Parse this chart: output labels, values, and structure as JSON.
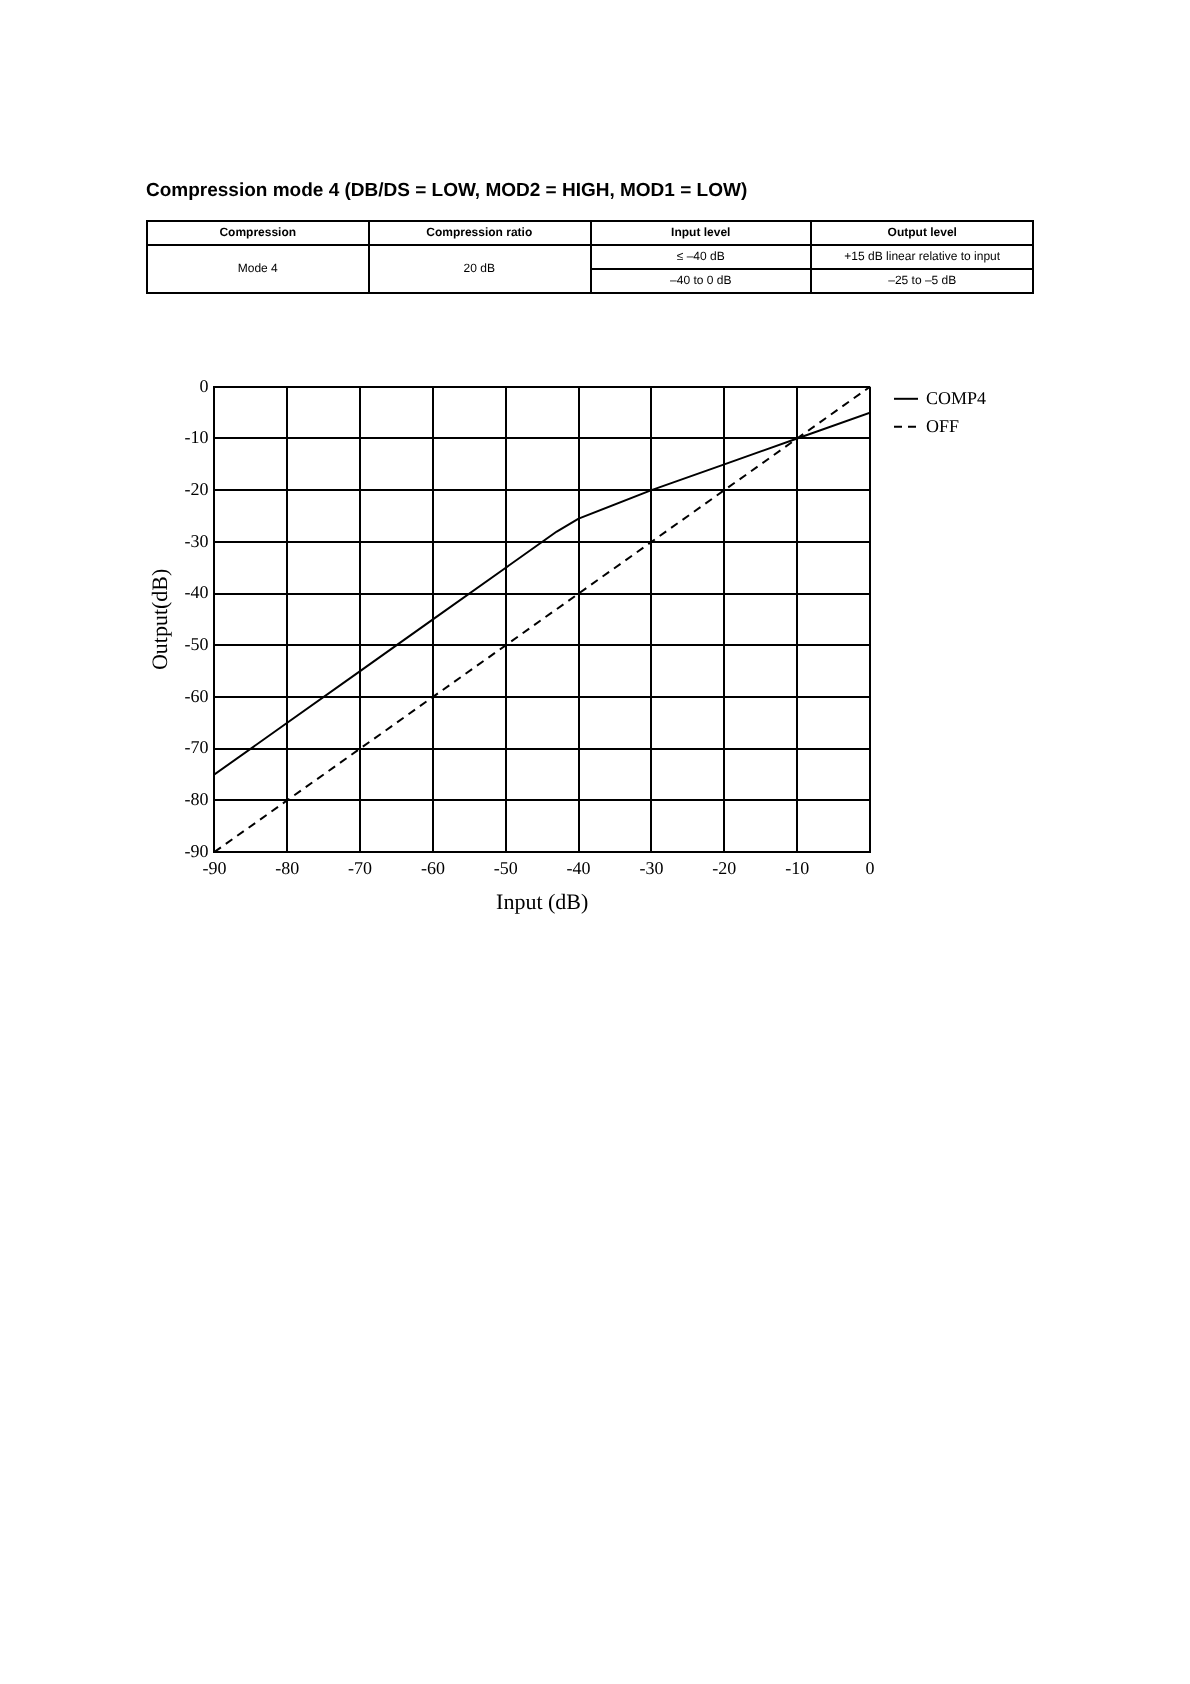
{
  "chart_data": {
    "type": "line",
    "title": "Compression mode 4 (DB/DS = LOW, MOD2 = HIGH, MOD1 = LOW)",
    "xlabel": "Input (dB)",
    "ylabel": "Output(dB)",
    "annotations": [
      "Compression",
      "Compression ratio",
      "Input level",
      "Output level",
      "Mode 4",
      "20 dB",
      "≤ –40 dB",
      "+15 dB linear relative to input",
      "–40 to 0 dB",
      "–25 to –5 dB"
    ],
    "series": [
      {
        "name": "COMP4",
        "color": "#000000",
        "line_style": "solid",
        "x": [
          -90,
          -80,
          -70,
          -60,
          -50,
          -43,
          -40,
          -30,
          -20,
          -10,
          0
        ],
        "values": [
          -75,
          -65,
          -55,
          -45,
          -35,
          -28,
          -25.5,
          -20,
          -15,
          -10,
          -5
        ]
      },
      {
        "name": "OFF",
        "color": "#000000",
        "line_style": "dashed",
        "x": [
          -90,
          0
        ],
        "values": [
          -90,
          0
        ]
      }
    ],
    "xlim": [
      -90,
      0
    ],
    "xticks": [
      -90,
      -80,
      -70,
      -60,
      -50,
      -40,
      -30,
      -20,
      -10,
      0
    ],
    "ylim": [
      -90,
      0
    ],
    "yticks": [
      -90,
      -80,
      -70,
      -60,
      -50,
      -40,
      -30,
      -20,
      -10,
      0
    ],
    "grid": true,
    "legend": "top right",
    "marker": "none"
  }
}
